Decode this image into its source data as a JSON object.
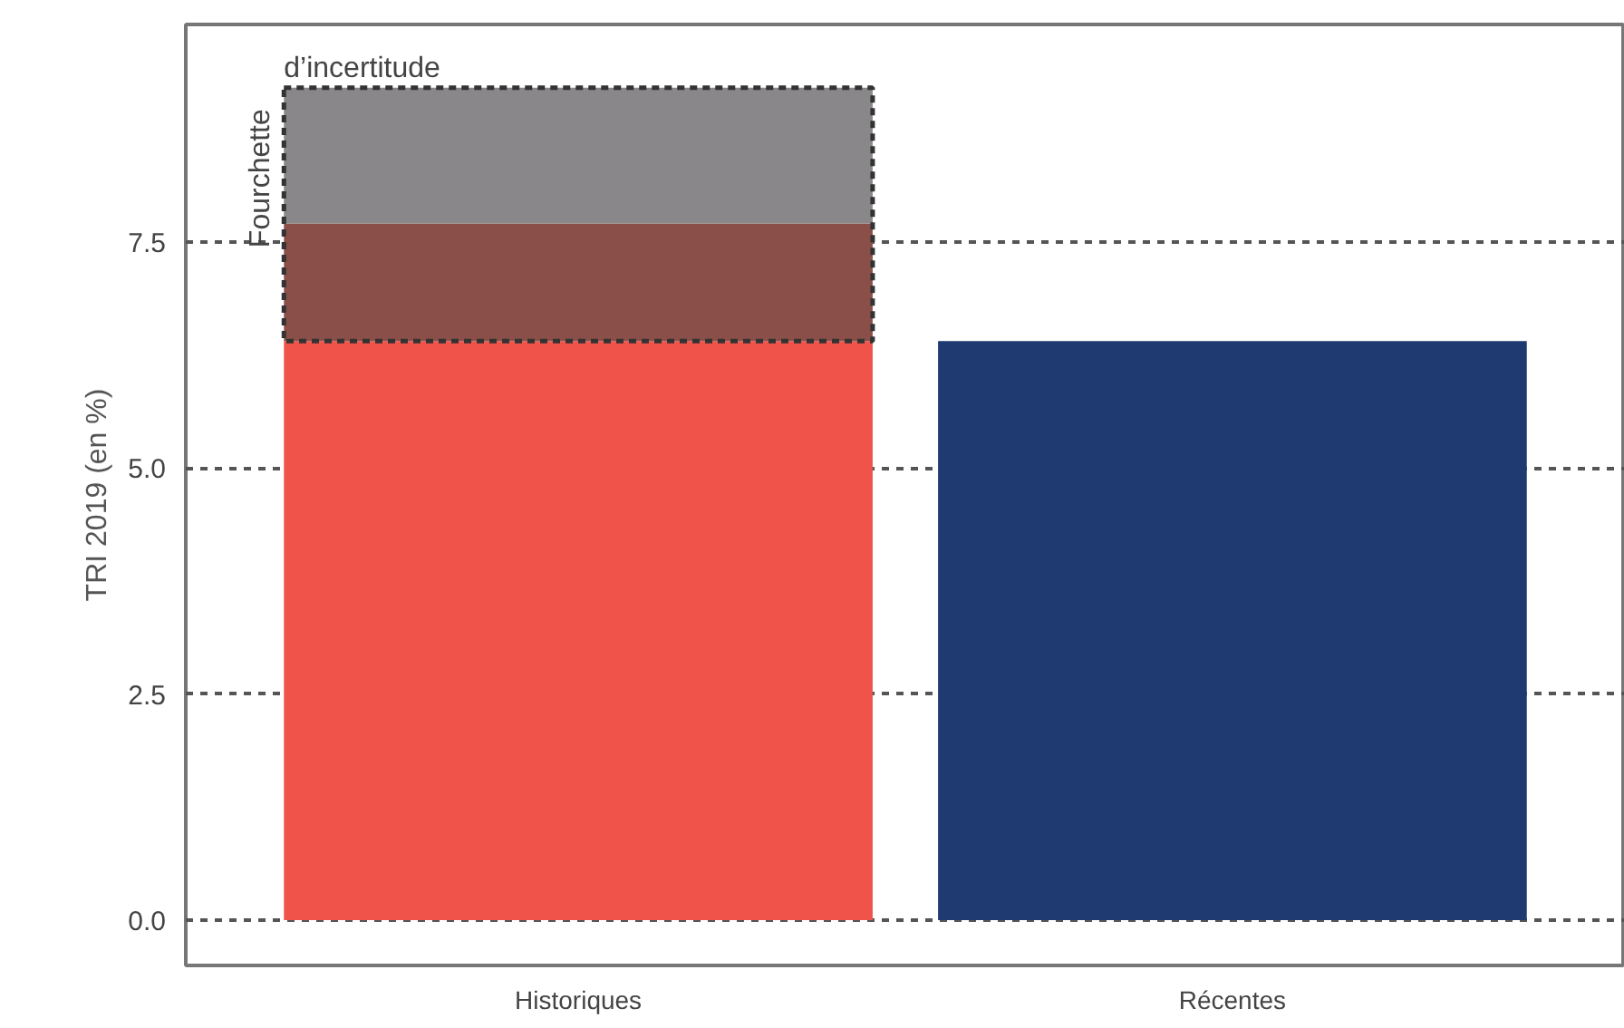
{
  "chart_data": {
    "type": "bar",
    "stacked": true,
    "ylabel": "TRI 2019 (en %)",
    "categories": [
      "Historiques",
      "Récentes"
    ],
    "series": [
      {
        "colors": [
          "#ef5349",
          "#1e3a70"
        ],
        "values": [
          6.4,
          6.4
        ]
      },
      {
        "color": "#8b4f4a",
        "values": [
          1.3,
          null
        ]
      },
      {
        "color": "#898789",
        "values": [
          1.5,
          null
        ]
      }
    ],
    "ylim": [
      -0.5,
      9.9
    ],
    "yticks": [
      {
        "value": 0,
        "label": "0.0"
      },
      {
        "value": 2.5,
        "label": "2.5"
      },
      {
        "value": 5,
        "label": "5.0"
      },
      {
        "value": 7.5,
        "label": "7.5"
      }
    ],
    "grid": "y",
    "annotations": [
      "Fourchette",
      "d’incertitude"
    ]
  }
}
